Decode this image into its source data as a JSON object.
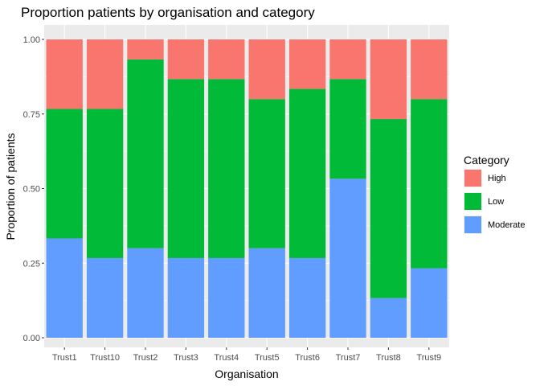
{
  "chart_data": {
    "type": "bar",
    "stacked": true,
    "title": "Proportion patients by organisation and category",
    "xlabel": "Organisation",
    "ylabel": "Proportion of patients",
    "ylim": [
      0,
      1
    ],
    "yticks": [
      "0.00",
      "0.25",
      "0.50",
      "0.75",
      "1.00"
    ],
    "grid": true,
    "legend_position": "right",
    "legend_title": "Category",
    "categories": [
      "Trust1",
      "Trust10",
      "Trust2",
      "Trust3",
      "Trust4",
      "Trust5",
      "Trust6",
      "Trust7",
      "Trust8",
      "Trust9"
    ],
    "series": [
      {
        "name": "Moderate",
        "color": "#619CFF",
        "values": [
          0.333,
          0.267,
          0.3,
          0.267,
          0.267,
          0.3,
          0.267,
          0.533,
          0.133,
          0.233
        ]
      },
      {
        "name": "Low",
        "color": "#00BA38",
        "values": [
          0.434,
          0.5,
          0.633,
          0.6,
          0.6,
          0.5,
          0.567,
          0.334,
          0.6,
          0.567
        ]
      },
      {
        "name": "High",
        "color": "#F8766D",
        "values": [
          0.233,
          0.233,
          0.067,
          0.133,
          0.133,
          0.2,
          0.166,
          0.133,
          0.267,
          0.2
        ]
      }
    ],
    "legend_order": [
      "High",
      "Low",
      "Moderate"
    ]
  }
}
